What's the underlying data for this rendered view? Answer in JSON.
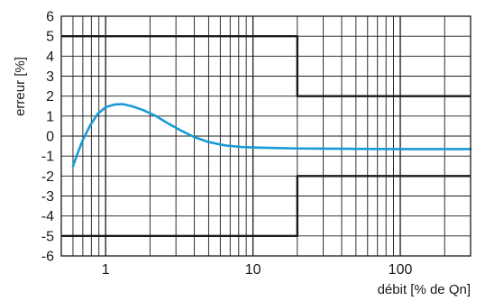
{
  "chart_data": {
    "type": "line",
    "title": "",
    "xlabel": "débit [% de Qn]",
    "ylabel": "erreur [%]",
    "x_scale": "log",
    "xlim": [
      0.5,
      300
    ],
    "ylim": [
      -6,
      6
    ],
    "grid": true,
    "x_ticks": [
      {
        "value": 1,
        "label": "1"
      },
      {
        "value": 10,
        "label": "10"
      },
      {
        "value": 100,
        "label": "100"
      }
    ],
    "y_ticks": [
      {
        "value": 6,
        "label": "6"
      },
      {
        "value": 5,
        "label": "5"
      },
      {
        "value": 4,
        "label": "4"
      },
      {
        "value": 3,
        "label": "3"
      },
      {
        "value": 2,
        "label": "2"
      },
      {
        "value": 1,
        "label": "1"
      },
      {
        "value": 0,
        "label": "0"
      },
      {
        "value": -1,
        "label": "-1"
      },
      {
        "value": -2,
        "label": "-2"
      },
      {
        "value": -3,
        "label": "-3"
      },
      {
        "value": -4,
        "label": "-4"
      },
      {
        "value": -5,
        "label": "-5"
      },
      {
        "value": -6,
        "label": "-6"
      }
    ],
    "series": [
      {
        "color": "#1a9ad6",
        "x": [
          0.6,
          0.65,
          0.7,
          0.78,
          0.88,
          1.0,
          1.15,
          1.3,
          1.5,
          1.8,
          2.2,
          2.7,
          3.3,
          4.0,
          5.0,
          6.5,
          8.5,
          11,
          15,
          20,
          30,
          50,
          100,
          200,
          300
        ],
        "y": [
          -1.5,
          -0.8,
          -0.2,
          0.5,
          1.1,
          1.45,
          1.58,
          1.6,
          1.5,
          1.3,
          1.0,
          0.6,
          0.25,
          -0.05,
          -0.3,
          -0.47,
          -0.55,
          -0.58,
          -0.6,
          -0.62,
          -0.63,
          -0.64,
          -0.65,
          -0.65,
          -0.65
        ]
      },
      {
        "color": "#1a1a1a",
        "x": [
          0.5,
          20,
          20,
          300
        ],
        "y": [
          5,
          5,
          2,
          2
        ]
      },
      {
        "color": "#1a1a1a",
        "x": [
          0.5,
          20,
          20,
          300
        ],
        "y": [
          -5,
          -5,
          -2,
          -2
        ]
      }
    ]
  }
}
